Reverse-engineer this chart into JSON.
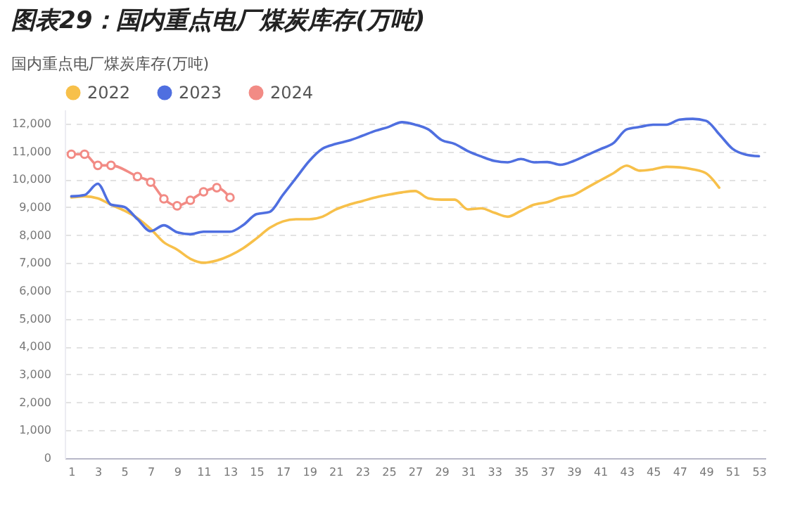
{
  "chart_data": {
    "type": "line",
    "title": "图表29：国内重点电厂煤炭库存(万吨)",
    "subtitle": "国内重点电厂煤炭库存(万吨)",
    "x": [
      1,
      2,
      3,
      4,
      5,
      6,
      7,
      8,
      9,
      10,
      11,
      12,
      13,
      14,
      15,
      16,
      17,
      18,
      19,
      20,
      21,
      22,
      23,
      24,
      25,
      26,
      27,
      28,
      29,
      30,
      31,
      32,
      33,
      34,
      35,
      36,
      37,
      38,
      39,
      40,
      41,
      42,
      43,
      44,
      45,
      46,
      47,
      48,
      49,
      50,
      51,
      52,
      53
    ],
    "series": [
      {
        "name": "2022",
        "color": "#f7c04a",
        "marker": "none",
        "values": [
          9350,
          9390,
          9320,
          9090,
          8880,
          8610,
          8220,
          7740,
          7480,
          7150,
          7010,
          7090,
          7270,
          7530,
          7880,
          8260,
          8490,
          8570,
          8570,
          8660,
          8920,
          9090,
          9220,
          9350,
          9450,
          9530,
          9580,
          9320,
          9270,
          9270,
          8920,
          8960,
          8800,
          8660,
          8870,
          9090,
          9180,
          9350,
          9440,
          9700,
          9960,
          10220,
          10490,
          10310,
          10360,
          10450,
          10430,
          10360,
          10220,
          9700,
          null,
          null,
          null
        ]
      },
      {
        "name": "2023",
        "color": "#4f6fe0",
        "marker": "none",
        "values": [
          9390,
          9440,
          9840,
          9090,
          9010,
          8570,
          8140,
          8350,
          8100,
          8030,
          8120,
          8120,
          8120,
          8360,
          8750,
          8830,
          9440,
          10050,
          10660,
          11100,
          11270,
          11390,
          11560,
          11740,
          11880,
          12050,
          11960,
          11790,
          11410,
          11270,
          11010,
          10820,
          10660,
          10610,
          10730,
          10610,
          10620,
          10520,
          10660,
          10870,
          11080,
          11300,
          11790,
          11880,
          11960,
          11960,
          12140,
          12170,
          12100,
          11620,
          11100,
          10890,
          10830
        ]
      },
      {
        "name": "2024",
        "color": "#f28b85",
        "marker": "circle",
        "x": [
          1,
          2,
          3,
          4,
          6,
          7,
          8,
          9,
          10,
          11,
          12,
          13
        ],
        "values": [
          10900,
          10900,
          10500,
          10500,
          10100,
          9900,
          9300,
          9050,
          9250,
          9550,
          9700,
          9350
        ]
      }
    ],
    "xlim": [
      0.5,
      53.5
    ],
    "xticks": [
      1,
      3,
      5,
      7,
      9,
      11,
      13,
      15,
      17,
      19,
      21,
      23,
      25,
      27,
      29,
      31,
      33,
      35,
      37,
      39,
      41,
      43,
      45,
      47,
      49,
      51,
      53
    ],
    "ylim": [
      0,
      12500
    ],
    "yticks": [
      {
        "value": 0,
        "label": "0"
      },
      {
        "value": 1000,
        "label": "1,000"
      },
      {
        "value": 2000,
        "label": "2,000"
      },
      {
        "value": 3000,
        "label": "3,000"
      },
      {
        "value": 4000,
        "label": "4,000"
      },
      {
        "value": 5000,
        "label": "5,000"
      },
      {
        "value": 6000,
        "label": "6,000"
      },
      {
        "value": 7000,
        "label": "7,000"
      },
      {
        "value": 8000,
        "label": "8,000"
      },
      {
        "value": 9000,
        "label": "9,000"
      },
      {
        "value": 10000,
        "label": "10,000"
      },
      {
        "value": 11000,
        "label": "11,000"
      },
      {
        "value": 12000,
        "label": "12,000"
      }
    ],
    "grid": "y",
    "legend": "top left"
  }
}
